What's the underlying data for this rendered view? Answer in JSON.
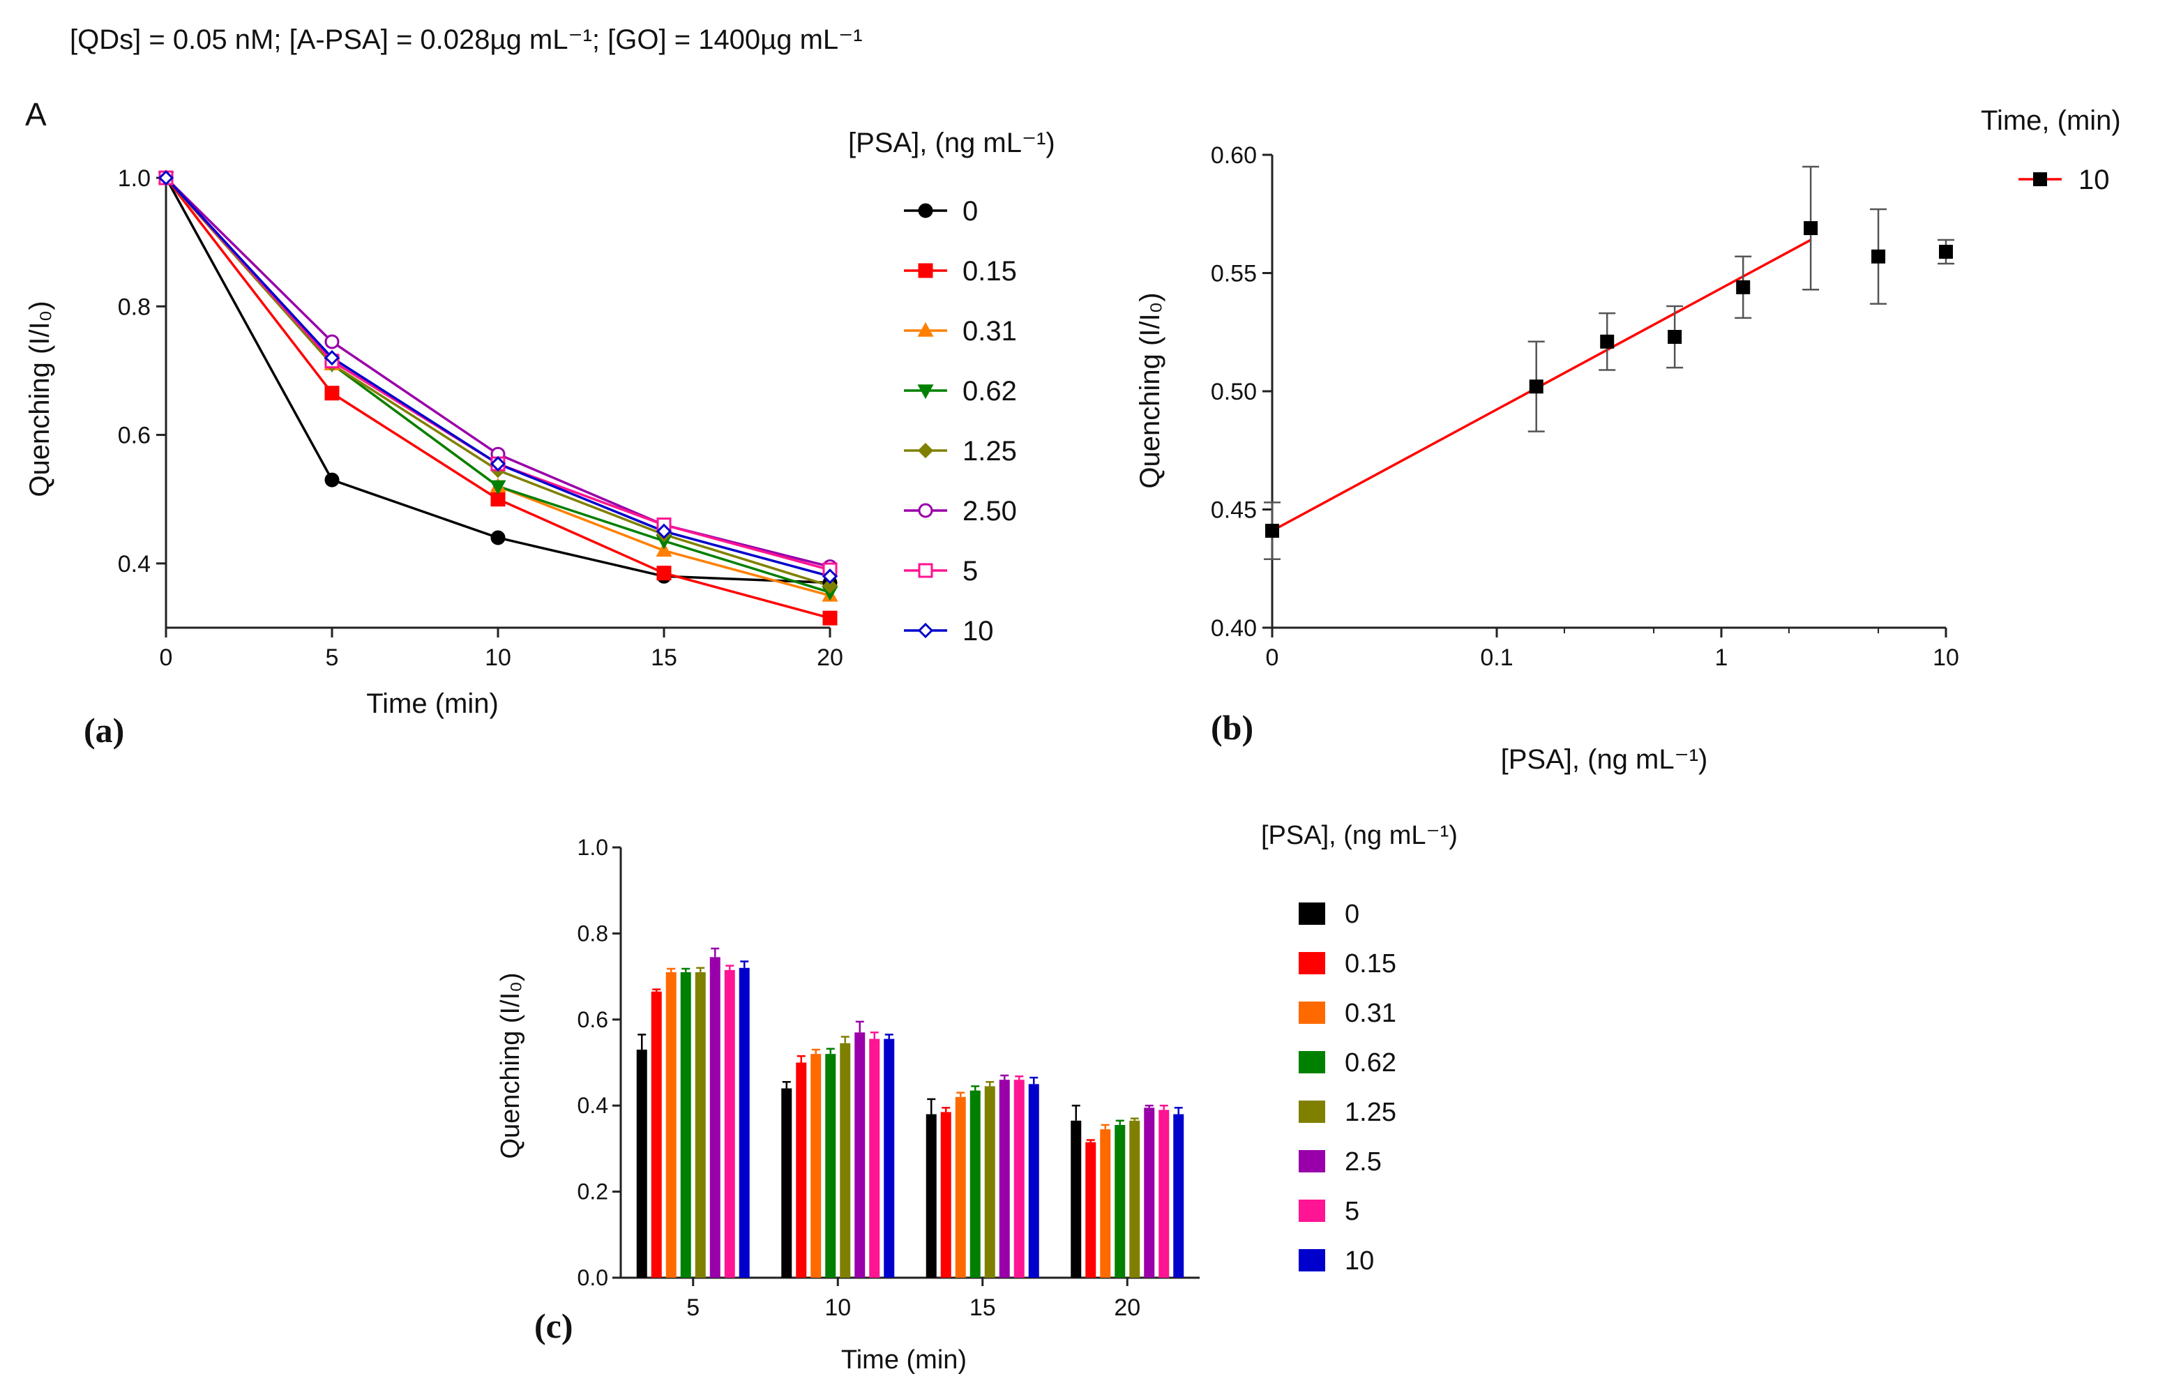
{
  "header": {
    "conditions_text": "[QDs] = 0.05 nM; [A-PSA] = 0.028µg mL⁻¹; [GO] = 1400µg mL⁻¹"
  },
  "chart_data": [
    {
      "id": "a",
      "type": "line",
      "panel_label": "(a)",
      "corner_label": "A",
      "xlabel": "Time (min)",
      "ylabel": "Quenching (I/I₀)",
      "xlim": [
        0,
        20
      ],
      "ylim": [
        0.3,
        1.0
      ],
      "xticks": [
        "0",
        "5",
        "10",
        "15",
        "20"
      ],
      "yticks": [
        "0.4",
        "0.6",
        "0.8",
        "1.0"
      ],
      "legend_title": "[PSA], (ng mL⁻¹)",
      "x": [
        0,
        5,
        10,
        15,
        20
      ],
      "series": [
        {
          "name": "0",
          "color": "#000000",
          "marker": "circle-filled",
          "values": [
            1.0,
            0.53,
            0.44,
            0.38,
            0.37
          ]
        },
        {
          "name": "0.15",
          "color": "#ff0000",
          "marker": "square-filled",
          "values": [
            1.0,
            0.665,
            0.5,
            0.385,
            0.315
          ]
        },
        {
          "name": "0.31",
          "color": "#ff8000",
          "marker": "triangle-up",
          "values": [
            1.0,
            0.71,
            0.52,
            0.42,
            0.35
          ]
        },
        {
          "name": "0.62",
          "color": "#008000",
          "marker": "triangle-down",
          "values": [
            1.0,
            0.71,
            0.52,
            0.435,
            0.355
          ]
        },
        {
          "name": "1.25",
          "color": "#808000",
          "marker": "diamond-filled",
          "values": [
            1.0,
            0.71,
            0.545,
            0.445,
            0.365
          ]
        },
        {
          "name": "2.50",
          "color": "#9900aa",
          "marker": "circle-open",
          "values": [
            1.0,
            0.745,
            0.57,
            0.46,
            0.395
          ]
        },
        {
          "name": "5",
          "color": "#ff1493",
          "marker": "square-open",
          "values": [
            1.0,
            0.715,
            0.555,
            0.46,
            0.39
          ]
        },
        {
          "name": "10",
          "color": "#0000cc",
          "marker": "diamond-open",
          "values": [
            1.0,
            0.72,
            0.555,
            0.45,
            0.38
          ]
        }
      ]
    },
    {
      "id": "b",
      "type": "scatter",
      "panel_label": "(b)",
      "xlabel": "[PSA], (ng mL⁻¹)",
      "ylabel": "Quenching (I/I₀)",
      "xscale": "log (0 at origin)",
      "ylim": [
        0.4,
        0.6
      ],
      "xticks": [
        "0",
        "0.1",
        "1",
        "10"
      ],
      "yticks": [
        "0.40",
        "0.45",
        "0.50",
        "0.55",
        "0.60"
      ],
      "legend_title": "Time, (min)",
      "series": [
        {
          "name": "10",
          "color": "#000000",
          "x": [
            0,
            0.15,
            0.31,
            0.62,
            1.25,
            2.5,
            5,
            10
          ],
          "y": [
            0.441,
            0.502,
            0.521,
            0.523,
            0.544,
            0.569,
            0.557,
            0.559
          ],
          "err": [
            0.012,
            0.019,
            0.012,
            0.013,
            0.013,
            0.026,
            0.02,
            0.005
          ]
        }
      ],
      "fit": {
        "color": "#ff0000",
        "x": [
          0,
          2.5
        ],
        "y": [
          0.441,
          0.564
        ]
      }
    },
    {
      "id": "c",
      "type": "bar",
      "panel_label": "(c)",
      "xlabel": "Time (min)",
      "ylabel": "Quenching (I/I₀)",
      "ylim": [
        0,
        1.0
      ],
      "categories": [
        "5",
        "10",
        "15",
        "20"
      ],
      "yticks": [
        "0.0",
        "0.2",
        "0.4",
        "0.6",
        "0.8",
        "1.0"
      ],
      "legend_title": "[PSA], (ng mL⁻¹)",
      "series": [
        {
          "name": "0",
          "color": "#000000",
          "values": [
            0.53,
            0.44,
            0.38,
            0.365
          ],
          "err": [
            0.035,
            0.015,
            0.035,
            0.035
          ]
        },
        {
          "name": "0.15",
          "color": "#ff0000",
          "values": [
            0.665,
            0.5,
            0.385,
            0.315
          ],
          "err": [
            0.005,
            0.015,
            0.01,
            0.005
          ]
        },
        {
          "name": "0.31",
          "color": "#ff6a00",
          "values": [
            0.71,
            0.52,
            0.42,
            0.345
          ],
          "err": [
            0.008,
            0.01,
            0.01,
            0.01
          ]
        },
        {
          "name": "0.62",
          "color": "#008000",
          "values": [
            0.71,
            0.52,
            0.435,
            0.355
          ],
          "err": [
            0.008,
            0.012,
            0.01,
            0.01
          ]
        },
        {
          "name": "1.25",
          "color": "#808000",
          "values": [
            0.71,
            0.545,
            0.445,
            0.365
          ],
          "err": [
            0.01,
            0.015,
            0.01,
            0.005
          ]
        },
        {
          "name": "2.5",
          "color": "#9900aa",
          "values": [
            0.745,
            0.57,
            0.46,
            0.395
          ],
          "err": [
            0.02,
            0.025,
            0.01,
            0.005
          ]
        },
        {
          "name": "5",
          "color": "#ff1493",
          "values": [
            0.715,
            0.555,
            0.46,
            0.39
          ],
          "err": [
            0.01,
            0.015,
            0.008,
            0.01
          ]
        },
        {
          "name": "10",
          "color": "#0000cc",
          "values": [
            0.72,
            0.555,
            0.45,
            0.38
          ],
          "err": [
            0.015,
            0.01,
            0.015,
            0.015
          ]
        }
      ]
    }
  ]
}
